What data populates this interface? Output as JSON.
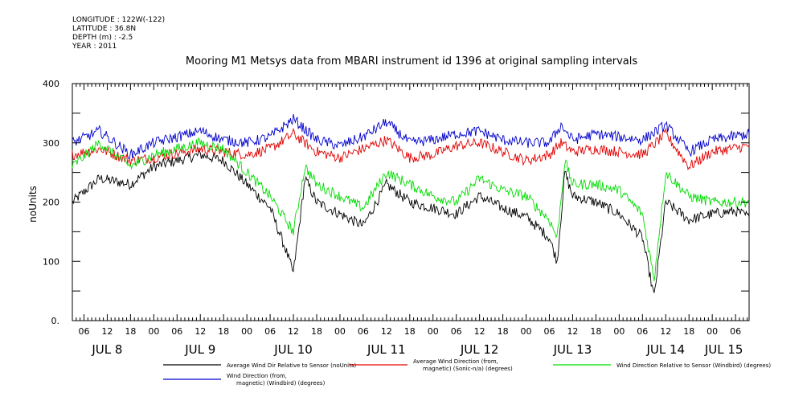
{
  "meta": {
    "longitude": "LONGITUDE : 122W(-122)",
    "latitude": "LATITUDE : 36.8N",
    "depth": "DEPTH (m) : -2.5",
    "year": "YEAR : 2011"
  },
  "chart_data": {
    "type": "line",
    "title": "Mooring M1 Metsys data from MBARI instrument id 1396 at original sampling intervals",
    "ylabel": "noUnits",
    "xlabel": "",
    "ylim": [
      0,
      400
    ],
    "xlim": [
      "2011-07-08T03:00",
      "2011-07-15T09:30"
    ],
    "yticks": [
      "0.",
      "100",
      "200",
      "300",
      "400"
    ],
    "hour_ticks": [
      {
        "t": "2011-07-08T06:00",
        "label": "06"
      },
      {
        "t": "2011-07-08T12:00",
        "label": "12"
      },
      {
        "t": "2011-07-08T18:00",
        "label": "18"
      },
      {
        "t": "2011-07-09T00:00",
        "label": "00"
      },
      {
        "t": "2011-07-09T06:00",
        "label": "06"
      },
      {
        "t": "2011-07-09T12:00",
        "label": "12"
      },
      {
        "t": "2011-07-09T18:00",
        "label": "18"
      },
      {
        "t": "2011-07-10T00:00",
        "label": "00"
      },
      {
        "t": "2011-07-10T06:00",
        "label": "06"
      },
      {
        "t": "2011-07-10T12:00",
        "label": "12"
      },
      {
        "t": "2011-07-10T18:00",
        "label": "18"
      },
      {
        "t": "2011-07-11T00:00",
        "label": "00"
      },
      {
        "t": "2011-07-11T06:00",
        "label": "06"
      },
      {
        "t": "2011-07-11T12:00",
        "label": "12"
      },
      {
        "t": "2011-07-11T18:00",
        "label": "18"
      },
      {
        "t": "2011-07-12T00:00",
        "label": "00"
      },
      {
        "t": "2011-07-12T06:00",
        "label": "06"
      },
      {
        "t": "2011-07-12T12:00",
        "label": "12"
      },
      {
        "t": "2011-07-12T18:00",
        "label": "18"
      },
      {
        "t": "2011-07-13T00:00",
        "label": "00"
      },
      {
        "t": "2011-07-13T06:00",
        "label": "06"
      },
      {
        "t": "2011-07-13T12:00",
        "label": "12"
      },
      {
        "t": "2011-07-13T18:00",
        "label": "18"
      },
      {
        "t": "2011-07-14T00:00",
        "label": "00"
      },
      {
        "t": "2011-07-14T06:00",
        "label": "06"
      },
      {
        "t": "2011-07-14T12:00",
        "label": "12"
      },
      {
        "t": "2011-07-14T18:00",
        "label": "18"
      },
      {
        "t": "2011-07-15T00:00",
        "label": "00"
      },
      {
        "t": "2011-07-15T06:00",
        "label": "06"
      }
    ],
    "day_labels": [
      {
        "t": "2011-07-08T12:00",
        "label": "JUL  8"
      },
      {
        "t": "2011-07-09T12:00",
        "label": "JUL  9"
      },
      {
        "t": "2011-07-10T12:00",
        "label": "JUL 10"
      },
      {
        "t": "2011-07-11T12:00",
        "label": "JUL 11"
      },
      {
        "t": "2011-07-12T12:00",
        "label": "JUL 12"
      },
      {
        "t": "2011-07-13T12:00",
        "label": "JUL 13"
      },
      {
        "t": "2011-07-14T12:00",
        "label": "JUL 14"
      },
      {
        "t": "2011-07-15T03:00",
        "label": "JUL 15"
      }
    ],
    "series": [
      {
        "name": "Average Wind Dir Relative to Sensor (noUnits)",
        "color": "#000000",
        "x": [
          "2011-07-08T03:00",
          "2011-07-08T10:00",
          "2011-07-08T18:00",
          "2011-07-09T00:00",
          "2011-07-09T12:00",
          "2011-07-09T18:00",
          "2011-07-10T00:00",
          "2011-07-10T06:00",
          "2011-07-10T10:00",
          "2011-07-10T12:00",
          "2011-07-10T15:00",
          "2011-07-10T18:00",
          "2011-07-11T00:00",
          "2011-07-11T06:00",
          "2011-07-11T12:00",
          "2011-07-11T18:00",
          "2011-07-12T00:00",
          "2011-07-12T06:00",
          "2011-07-12T12:00",
          "2011-07-12T18:00",
          "2011-07-13T00:00",
          "2011-07-13T06:00",
          "2011-07-13T08:00",
          "2011-07-13T10:00",
          "2011-07-13T12:00",
          "2011-07-13T18:00",
          "2011-07-14T00:00",
          "2011-07-14T06:00",
          "2011-07-14T09:00",
          "2011-07-14T12:00",
          "2011-07-14T18:00",
          "2011-07-15T00:00",
          "2011-07-15T06:00",
          "2011-07-15T09:30"
        ],
        "y": [
          200,
          240,
          230,
          260,
          280,
          270,
          230,
          190,
          120,
          80,
          240,
          200,
          180,
          160,
          230,
          200,
          190,
          180,
          210,
          190,
          175,
          140,
          100,
          250,
          210,
          200,
          180,
          140,
          40,
          200,
          170,
          180,
          185,
          175
        ]
      },
      {
        "name": "Average Wind Direction (from, magnetic) (Sonic-n/a) (degrees)",
        "color": "#e00000",
        "x": [
          "2011-07-08T03:00",
          "2011-07-08T10:00",
          "2011-07-08T18:00",
          "2011-07-09T00:00",
          "2011-07-09T12:00",
          "2011-07-09T18:00",
          "2011-07-10T00:00",
          "2011-07-10T06:00",
          "2011-07-10T12:00",
          "2011-07-10T18:00",
          "2011-07-11T00:00",
          "2011-07-11T06:00",
          "2011-07-11T12:00",
          "2011-07-11T18:00",
          "2011-07-12T00:00",
          "2011-07-12T06:00",
          "2011-07-12T12:00",
          "2011-07-12T18:00",
          "2011-07-13T00:00",
          "2011-07-13T06:00",
          "2011-07-13T09:00",
          "2011-07-13T12:00",
          "2011-07-13T18:00",
          "2011-07-14T00:00",
          "2011-07-14T06:00",
          "2011-07-14T12:00",
          "2011-07-14T18:00",
          "2011-07-15T00:00",
          "2011-07-15T09:30"
        ],
        "y": [
          280,
          290,
          270,
          275,
          290,
          285,
          280,
          290,
          315,
          285,
          275,
          290,
          305,
          275,
          280,
          295,
          300,
          285,
          270,
          280,
          300,
          285,
          290,
          285,
          280,
          315,
          260,
          285,
          295
        ]
      },
      {
        "name": "Wind Direction Relative to Sensor (Windbird) (degrees)",
        "color": "#00dd00",
        "x": [
          "2011-07-08T03:00",
          "2011-07-08T10:00",
          "2011-07-08T18:00",
          "2011-07-09T00:00",
          "2011-07-09T12:00",
          "2011-07-09T18:00",
          "2011-07-10T00:00",
          "2011-07-10T06:00",
          "2011-07-10T10:00",
          "2011-07-10T12:00",
          "2011-07-10T15:00",
          "2011-07-10T18:00",
          "2011-07-11T00:00",
          "2011-07-11T06:00",
          "2011-07-11T12:00",
          "2011-07-11T18:00",
          "2011-07-12T00:00",
          "2011-07-12T06:00",
          "2011-07-12T12:00",
          "2011-07-12T18:00",
          "2011-07-13T00:00",
          "2011-07-13T06:00",
          "2011-07-13T08:00",
          "2011-07-13T10:00",
          "2011-07-13T12:00",
          "2011-07-13T18:00",
          "2011-07-14T00:00",
          "2011-07-14T06:00",
          "2011-07-14T09:00",
          "2011-07-14T12:00",
          "2011-07-14T18:00",
          "2011-07-15T00:00",
          "2011-07-15T09:30"
        ],
        "y": [
          260,
          300,
          260,
          280,
          300,
          290,
          250,
          210,
          170,
          150,
          260,
          230,
          210,
          190,
          250,
          230,
          210,
          200,
          240,
          220,
          210,
          170,
          140,
          270,
          230,
          230,
          220,
          180,
          70,
          250,
          210,
          200,
          200
        ]
      },
      {
        "name": "Wind Direction (from, magnetic) (Windbird) (degrees)",
        "color": "#0000cc",
        "x": [
          "2011-07-08T03:00",
          "2011-07-08T10:00",
          "2011-07-08T18:00",
          "2011-07-09T00:00",
          "2011-07-09T12:00",
          "2011-07-09T18:00",
          "2011-07-10T00:00",
          "2011-07-10T06:00",
          "2011-07-10T12:00",
          "2011-07-10T18:00",
          "2011-07-11T00:00",
          "2011-07-11T06:00",
          "2011-07-11T12:00",
          "2011-07-11T18:00",
          "2011-07-12T00:00",
          "2011-07-12T06:00",
          "2011-07-12T12:00",
          "2011-07-12T18:00",
          "2011-07-13T00:00",
          "2011-07-13T06:00",
          "2011-07-13T09:00",
          "2011-07-13T12:00",
          "2011-07-13T18:00",
          "2011-07-14T00:00",
          "2011-07-14T06:00",
          "2011-07-14T12:00",
          "2011-07-14T18:00",
          "2011-07-15T00:00",
          "2011-07-15T09:30"
        ],
        "y": [
          300,
          320,
          280,
          300,
          320,
          305,
          300,
          310,
          340,
          305,
          295,
          310,
          335,
          300,
          305,
          315,
          320,
          305,
          300,
          300,
          330,
          305,
          315,
          310,
          305,
          330,
          285,
          305,
          315
        ]
      }
    ],
    "legend": {
      "placement": "bottom",
      "entries": [
        {
          "line1": "Average Wind Dir Relative to Sensor (noUnits)",
          "line2": "",
          "color": "#000000"
        },
        {
          "line1": "Average Wind Direction (from,",
          "line2": "magnetic) (Sonic-n/a) (degrees)",
          "color": "#e00000"
        },
        {
          "line1": "Wind Direction Relative to Sensor (Windbird) (degrees)",
          "line2": "",
          "color": "#00dd00"
        },
        {
          "line1": "Wind Direction (from,",
          "line2": "magnetic) (Windbird) (degrees)",
          "color": "#0000cc"
        }
      ]
    }
  }
}
